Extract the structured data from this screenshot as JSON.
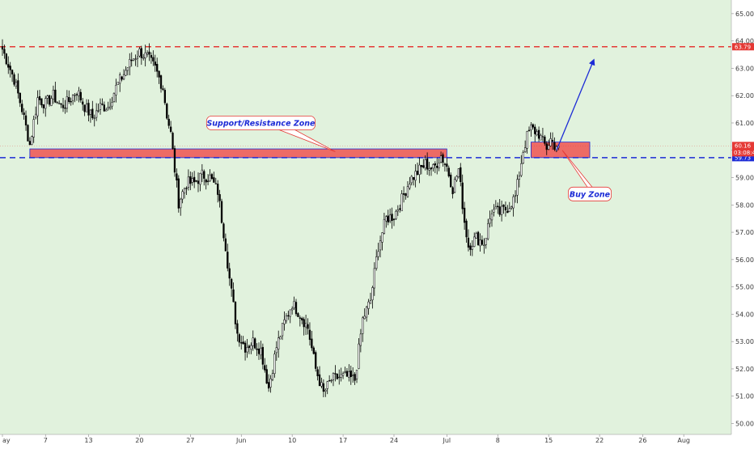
{
  "chart_data": {
    "type": "candlestick",
    "title": "",
    "xlabel": "",
    "ylabel": "",
    "ylim": [
      49.6,
      65.5
    ],
    "y_ticks": [
      "65.00",
      "64.00",
      "63.00",
      "62.00",
      "61.00",
      "60.00",
      "59.00",
      "58.00",
      "57.00",
      "56.00",
      "55.00",
      "54.00",
      "53.00",
      "52.00",
      "51.00",
      "50.00"
    ],
    "x_ticks": [
      {
        "label": "ay",
        "index": 0
      },
      {
        "label": "7",
        "index": 22
      },
      {
        "label": "13",
        "index": 44
      },
      {
        "label": "20",
        "index": 70
      },
      {
        "label": "27",
        "index": 96
      },
      {
        "label": "Jun",
        "index": 122
      },
      {
        "label": "10",
        "index": 148
      },
      {
        "label": "17",
        "index": 174
      },
      {
        "label": "24",
        "index": 200
      },
      {
        "label": "Jul",
        "index": 227
      },
      {
        "label": "8",
        "index": 253
      },
      {
        "label": "15",
        "index": 279
      },
      {
        "label": "22",
        "index": 305
      },
      {
        "label": "26",
        "index": 327
      },
      {
        "label": "Aug",
        "index": 348
      }
    ],
    "close_anchors": [
      [
        0,
        63.7
      ],
      [
        6,
        62.6
      ],
      [
        10,
        61.5
      ],
      [
        14,
        60.2
      ],
      [
        18,
        61.9
      ],
      [
        22,
        61.7
      ],
      [
        26,
        62.0
      ],
      [
        30,
        61.6
      ],
      [
        34,
        61.8
      ],
      [
        38,
        62.2
      ],
      [
        42,
        61.6
      ],
      [
        46,
        61.2
      ],
      [
        50,
        61.6
      ],
      [
        54,
        61.6
      ],
      [
        58,
        62.3
      ],
      [
        62,
        62.8
      ],
      [
        66,
        63.3
      ],
      [
        70,
        63.6
      ],
      [
        74,
        63.4
      ],
      [
        78,
        63.0
      ],
      [
        82,
        62.3
      ],
      [
        84,
        61.3
      ],
      [
        86,
        60.6
      ],
      [
        88,
        59.3
      ],
      [
        90,
        58.1
      ],
      [
        94,
        58.8
      ],
      [
        98,
        58.8
      ],
      [
        102,
        59.1
      ],
      [
        106,
        59.0
      ],
      [
        110,
        58.5
      ],
      [
        112,
        57.5
      ],
      [
        114,
        56.5
      ],
      [
        116,
        55.3
      ],
      [
        118,
        54.3
      ],
      [
        120,
        53.3
      ],
      [
        124,
        52.8
      ],
      [
        128,
        53.0
      ],
      [
        132,
        52.7
      ],
      [
        136,
        51.3
      ],
      [
        140,
        52.8
      ],
      [
        144,
        53.7
      ],
      [
        148,
        54.4
      ],
      [
        152,
        54.0
      ],
      [
        156,
        53.5
      ],
      [
        160,
        52.0
      ],
      [
        164,
        51.1
      ],
      [
        168,
        51.6
      ],
      [
        172,
        51.7
      ],
      [
        176,
        51.7
      ],
      [
        180,
        51.6
      ],
      [
        184,
        53.8
      ],
      [
        188,
        54.5
      ],
      [
        192,
        56.5
      ],
      [
        196,
        57.5
      ],
      [
        200,
        57.6
      ],
      [
        204,
        58.2
      ],
      [
        208,
        58.9
      ],
      [
        212,
        59.2
      ],
      [
        216,
        59.5
      ],
      [
        220,
        59.3
      ],
      [
        224,
        59.8
      ],
      [
        227,
        59.4
      ],
      [
        230,
        58.6
      ],
      [
        233,
        59.3
      ],
      [
        236,
        57.4
      ],
      [
        238,
        56.5
      ],
      [
        242,
        56.8
      ],
      [
        246,
        56.6
      ],
      [
        250,
        57.8
      ],
      [
        254,
        57.7
      ],
      [
        258,
        57.9
      ],
      [
        262,
        58.3
      ],
      [
        266,
        60.0
      ],
      [
        268,
        60.5
      ],
      [
        270,
        60.8
      ],
      [
        274,
        60.6
      ],
      [
        276,
        60.3
      ],
      [
        278,
        60.1
      ],
      [
        280,
        60.4
      ],
      [
        282,
        60.2
      ],
      [
        284,
        60.16
      ]
    ],
    "levels": [
      {
        "value": 63.79,
        "label": "63.79",
        "color": "#e53935",
        "style": "dashed"
      },
      {
        "value": 59.73,
        "label": "59.73",
        "color": "#1c2bd6",
        "style": "dashed"
      },
      {
        "value": 60.16,
        "label": "60.16",
        "color": "#e53935",
        "style": "price-line"
      }
    ],
    "countdown": "03:08:46",
    "zones": [
      {
        "start": 14,
        "end": 227,
        "low": 59.73,
        "high": 60.05
      },
      {
        "start": 270,
        "end": 300,
        "low": 59.73,
        "high": 60.3
      }
    ],
    "annotations": [
      {
        "text": "Support/Resistance Zone",
        "index": 132,
        "value": 61.0
      },
      {
        "text": "Buy Zone",
        "index": 300,
        "value": 58.4
      }
    ],
    "arrow": {
      "from_index": 283,
      "from_value": 60.0,
      "to_index": 302,
      "to_value": 63.3
    },
    "background": "#e1f2dd",
    "up_color": "#000000",
    "down_color": "#000000",
    "zone_fill": "#ef5350",
    "arrow_color": "#1c2bd6",
    "grid": false
  }
}
